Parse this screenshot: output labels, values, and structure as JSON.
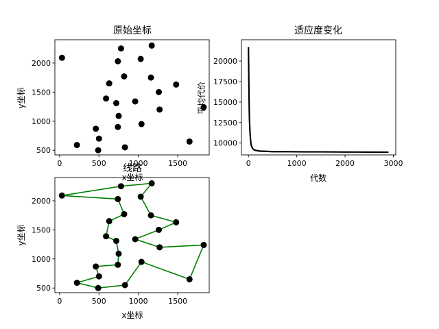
{
  "chart_data": [
    {
      "type": "scatter",
      "title": "原始坐标",
      "xlabel": "x坐标",
      "ylabel": "y坐标",
      "xlim": [
        -60,
        1900
      ],
      "ylim": [
        420,
        2400
      ],
      "xticks": [
        0,
        500,
        1000,
        1500
      ],
      "yticks": [
        500,
        1000,
        1500,
        2000
      ],
      "grid": false,
      "points": [
        {
          "x": 30,
          "y": 2090
        },
        {
          "x": 780,
          "y": 2250
        },
        {
          "x": 1170,
          "y": 2300
        },
        {
          "x": 740,
          "y": 2030
        },
        {
          "x": 1030,
          "y": 2070
        },
        {
          "x": 820,
          "y": 1770
        },
        {
          "x": 1160,
          "y": 1750
        },
        {
          "x": 1480,
          "y": 1630
        },
        {
          "x": 630,
          "y": 1650
        },
        {
          "x": 1260,
          "y": 1500
        },
        {
          "x": 590,
          "y": 1390
        },
        {
          "x": 960,
          "y": 1340
        },
        {
          "x": 720,
          "y": 1310
        },
        {
          "x": 1270,
          "y": 1200
        },
        {
          "x": 1830,
          "y": 1240
        },
        {
          "x": 750,
          "y": 1090
        },
        {
          "x": 1040,
          "y": 950
        },
        {
          "x": 740,
          "y": 900
        },
        {
          "x": 460,
          "y": 870
        },
        {
          "x": 500,
          "y": 700
        },
        {
          "x": 1650,
          "y": 650
        },
        {
          "x": 220,
          "y": 590
        },
        {
          "x": 830,
          "y": 550
        },
        {
          "x": 490,
          "y": 500
        }
      ]
    },
    {
      "type": "line",
      "title": "适应度变化",
      "xlabel": "代数",
      "ylabel": "平均代价",
      "xlim": [
        -145,
        3050
      ],
      "ylim": [
        8550,
        22600
      ],
      "xticks": [
        0,
        1000,
        2000,
        3000
      ],
      "yticks": [
        10000,
        12500,
        15000,
        17500,
        20000
      ],
      "grid": false,
      "series": [
        {
          "x": [
            0,
            5,
            10,
            15,
            20,
            30,
            40,
            50,
            60,
            80,
            100,
            120,
            150,
            200,
            250,
            300,
            400,
            500,
            600,
            800,
            1000,
            1200,
            1500,
            1800,
            2000,
            2200,
            2500,
            2700,
            2900
          ],
          "y": [
            21700,
            19000,
            16500,
            14500,
            13000,
            11500,
            10600,
            10000,
            9700,
            9400,
            9250,
            9150,
            9100,
            9050,
            9000,
            9000,
            8980,
            8950,
            8950,
            8940,
            8930,
            8920,
            8920,
            8910,
            8900,
            8900,
            8890,
            8890,
            8880
          ]
        }
      ]
    },
    {
      "type": "line",
      "title": "线路",
      "xlabel": "x坐标",
      "ylabel": "y坐标",
      "xlim": [
        -60,
        1900
      ],
      "ylim": [
        420,
        2400
      ],
      "xticks": [
        0,
        500,
        1000,
        1500
      ],
      "yticks": [
        500,
        1000,
        1500,
        2000
      ],
      "grid": false,
      "route": [
        {
          "x": 30,
          "y": 2090
        },
        {
          "x": 740,
          "y": 2030
        },
        {
          "x": 820,
          "y": 1770
        },
        {
          "x": 630,
          "y": 1650
        },
        {
          "x": 590,
          "y": 1390
        },
        {
          "x": 720,
          "y": 1310
        },
        {
          "x": 750,
          "y": 1090
        },
        {
          "x": 740,
          "y": 900
        },
        {
          "x": 460,
          "y": 870
        },
        {
          "x": 500,
          "y": 700
        },
        {
          "x": 220,
          "y": 590
        },
        {
          "x": 490,
          "y": 500
        },
        {
          "x": 830,
          "y": 550
        },
        {
          "x": 1040,
          "y": 950
        },
        {
          "x": 1650,
          "y": 650
        },
        {
          "x": 1830,
          "y": 1240
        },
        {
          "x": 1270,
          "y": 1200
        },
        {
          "x": 960,
          "y": 1340
        },
        {
          "x": 1260,
          "y": 1500
        },
        {
          "x": 1480,
          "y": 1630
        },
        {
          "x": 1160,
          "y": 1750
        },
        {
          "x": 1030,
          "y": 2070
        },
        {
          "x": 1170,
          "y": 2300
        },
        {
          "x": 780,
          "y": 2250
        },
        {
          "x": 30,
          "y": 2090
        }
      ],
      "colors": {
        "route": "#008000",
        "points": "#000000"
      }
    }
  ]
}
